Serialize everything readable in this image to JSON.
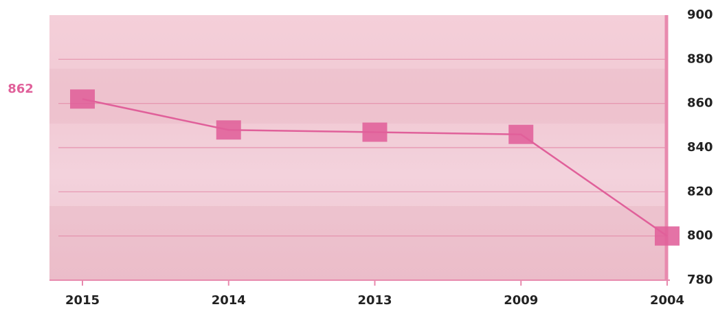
{
  "chart_data": {
    "type": "line",
    "categories": [
      "2015",
      "2014",
      "2013",
      "2009",
      "2004"
    ],
    "series": [
      {
        "color": "#e0609a",
        "values": [
          862,
          848,
          847,
          846,
          800
        ],
        "value_labels": [
          "862",
          null,
          null,
          null,
          null
        ]
      }
    ],
    "ylim": [
      780,
      900
    ],
    "yticks": [
      780,
      800,
      820,
      840,
      860,
      880,
      900
    ],
    "y_axis_side": "right",
    "grid": true
  }
}
